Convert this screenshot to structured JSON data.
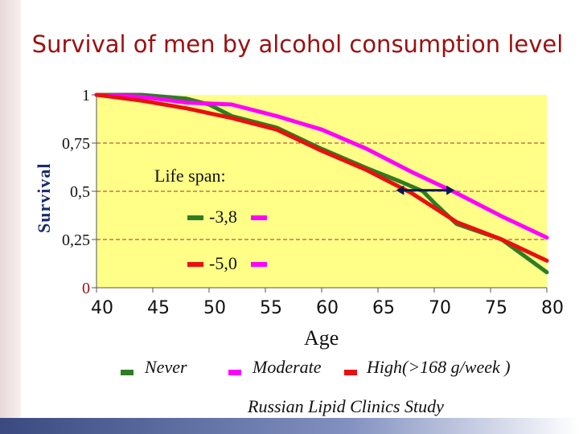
{
  "title": "Survival of men by alcohol consumption level",
  "colors": {
    "title": "#9b1010",
    "plot_bg": "#ffff88",
    "never": "#2e7d22",
    "moderate": "#ff00ff",
    "high": "#e81010"
  },
  "chart_data": {
    "type": "line",
    "xlabel": "Age",
    "ylabel": "Survival",
    "xlim": [
      40,
      80
    ],
    "ylim": [
      0,
      1
    ],
    "x_ticks": [
      "40",
      "45",
      "50",
      "55",
      "60",
      "65",
      "70",
      "75",
      "80"
    ],
    "y_ticks": [
      "0",
      "0,25",
      "0,5",
      "0,75",
      "1"
    ],
    "series": [
      {
        "name": "Never",
        "color": "#2e7d22",
        "x": [
          40,
          44,
          48,
          50,
          52,
          56,
          60,
          64,
          67,
          69,
          70,
          72,
          76,
          80
        ],
        "y": [
          1.0,
          1.0,
          0.98,
          0.95,
          0.89,
          0.83,
          0.72,
          0.62,
          0.55,
          0.5,
          0.44,
          0.33,
          0.25,
          0.08
        ]
      },
      {
        "name": "Moderate",
        "color": "#ff00ff",
        "x": [
          40,
          44,
          48,
          52,
          56,
          60,
          64,
          68,
          72,
          76,
          80
        ],
        "y": [
          1.0,
          0.99,
          0.96,
          0.95,
          0.89,
          0.82,
          0.72,
          0.6,
          0.49,
          0.37,
          0.26
        ]
      },
      {
        "name": "High(>168 g/week )",
        "color": "#e81010",
        "x": [
          40,
          44,
          48,
          52,
          56,
          60,
          64,
          68,
          72,
          76,
          80
        ],
        "y": [
          1.0,
          0.97,
          0.93,
          0.88,
          0.82,
          0.71,
          0.61,
          0.49,
          0.34,
          0.25,
          0.14
        ]
      }
    ],
    "annotation": {
      "label": "Life span:",
      "items": [
        {
          "value": "-3,8",
          "left_color": "#2e7d22",
          "right_color": "#ff00ff"
        },
        {
          "value": "-5,0",
          "left_color": "#e81010",
          "right_color": "#ff00ff"
        }
      ]
    }
  },
  "legend": {
    "items": [
      {
        "label": "Never",
        "color": "#2e7d22"
      },
      {
        "label": "Moderate",
        "color": "#ff00ff"
      },
      {
        "label": "High(>168 g/week )",
        "color": "#e81010"
      }
    ]
  },
  "source": "Russian Lipid Clinics Study"
}
